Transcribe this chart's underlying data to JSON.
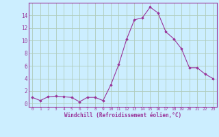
{
  "x": [
    0,
    1,
    2,
    3,
    4,
    5,
    6,
    7,
    8,
    9,
    10,
    11,
    12,
    13,
    14,
    15,
    16,
    17,
    18,
    19,
    20,
    21,
    22,
    23
  ],
  "y": [
    1.0,
    0.5,
    1.1,
    1.2,
    1.1,
    1.0,
    0.3,
    1.0,
    1.0,
    0.5,
    3.0,
    6.2,
    10.2,
    13.3,
    13.6,
    15.3,
    14.4,
    11.4,
    10.3,
    8.7,
    5.7,
    5.7,
    4.7,
    4.0
  ],
  "line_color": "#993399",
  "marker_color": "#993399",
  "bg_color": "#cceeff",
  "grid_color": "#b0ccbb",
  "xlabel": "Windchill (Refroidissement éolien,°C)",
  "xlim": [
    -0.5,
    23.5
  ],
  "ylim": [
    -0.5,
    16.0
  ],
  "yticks": [
    0,
    2,
    4,
    6,
    8,
    10,
    12,
    14
  ],
  "xticks": [
    0,
    1,
    2,
    3,
    4,
    5,
    6,
    7,
    8,
    9,
    10,
    11,
    12,
    13,
    14,
    15,
    16,
    17,
    18,
    19,
    20,
    21,
    22,
    23
  ],
  "xtick_labels": [
    "0",
    "1",
    "2",
    "3",
    "4",
    "5",
    "6",
    "7",
    "8",
    "9",
    "10",
    "11",
    "12",
    "13",
    "14",
    "15",
    "16",
    "17",
    "18",
    "19",
    "20",
    "21",
    "22",
    "23"
  ]
}
